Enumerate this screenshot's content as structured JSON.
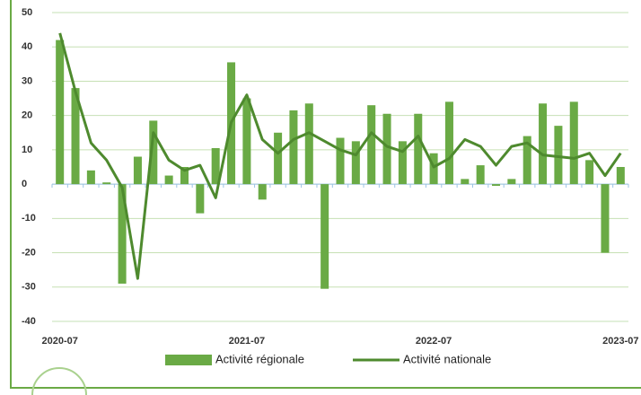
{
  "chart_data": {
    "type": "bar+line",
    "categories": [
      "2020-07",
      null,
      null,
      null,
      null,
      null,
      null,
      null,
      null,
      null,
      null,
      null,
      "2021-07",
      null,
      null,
      null,
      null,
      null,
      null,
      null,
      null,
      null,
      null,
      null,
      "2022-07",
      null,
      null,
      null,
      null,
      null,
      null,
      null,
      null,
      null,
      null,
      null,
      "2023-07"
    ],
    "series": [
      {
        "name": "Activité régionale",
        "type": "bar",
        "color": "#6aaa45",
        "values": [
          42,
          28,
          4,
          0.5,
          -29,
          8,
          18.5,
          2.5,
          5,
          -8.5,
          10.5,
          35.5,
          25,
          -4.5,
          15,
          21.5,
          23.5,
          -30.5,
          13.5,
          12.5,
          23,
          20.5,
          12.5,
          20.5,
          9,
          24,
          1.5,
          5.5,
          -0.5,
          1.5,
          14,
          23.5,
          17,
          24,
          7,
          -20,
          5
        ]
      },
      {
        "name": "Activité nationale",
        "type": "line",
        "color": "#4e8a2e",
        "values": [
          44,
          27,
          12,
          7,
          -1,
          -27.5,
          15,
          7,
          4,
          5.5,
          -4,
          18,
          26,
          13,
          9,
          13,
          15,
          12.5,
          10,
          8.5,
          15,
          11,
          9.5,
          14,
          5,
          7.5,
          13,
          11,
          5.5,
          11,
          12,
          8.5,
          8,
          7.5,
          9,
          2.5,
          9
        ]
      }
    ],
    "ylim": [
      -40,
      50
    ],
    "yticks": [
      -40,
      -30,
      -20,
      -10,
      0,
      10,
      20,
      30,
      40,
      50
    ],
    "grid": true,
    "legend": "bottom"
  }
}
